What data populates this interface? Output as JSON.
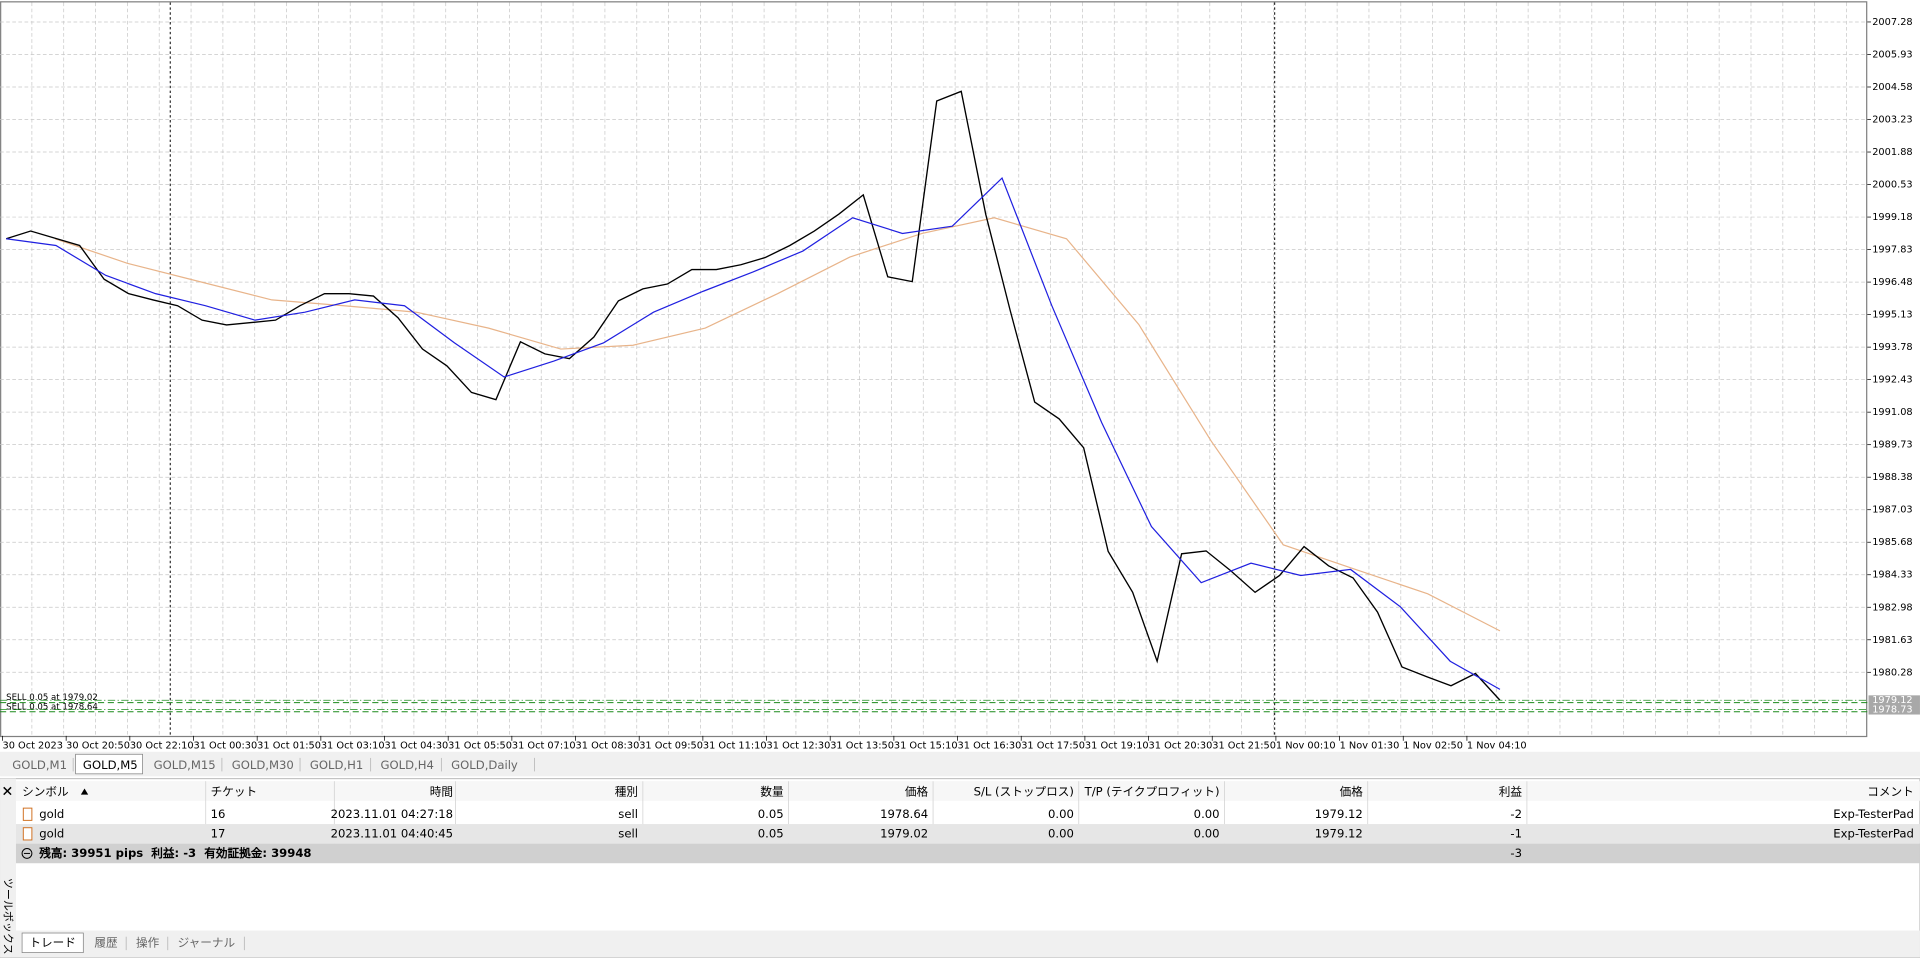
{
  "chart": {
    "ylim": [
      1977.64,
      2008.09
    ],
    "yticks": [
      2007.28,
      2005.93,
      2004.58,
      2003.23,
      2001.88,
      2000.53,
      1999.18,
      1997.83,
      1996.48,
      1995.13,
      1993.78,
      1992.43,
      1991.08,
      1989.73,
      1988.38,
      1987.03,
      1985.68,
      1984.33,
      1982.98,
      1981.63,
      1980.28
    ],
    "x_labels": [
      "30 Oct 2023",
      "30 Oct 20:50",
      "30 Oct 22:10",
      "31 Oct 00:30",
      "31 Oct 01:50",
      "31 Oct 03:10",
      "31 Oct 04:30",
      "31 Oct 05:50",
      "31 Oct 07:10",
      "31 Oct 08:30",
      "31 Oct 09:50",
      "31 Oct 11:10",
      "31 Oct 12:30",
      "31 Oct 13:50",
      "31 Oct 15:10",
      "31 Oct 16:30",
      "31 Oct 17:50",
      "31 Oct 19:10",
      "31 Oct 20:30",
      "31 Oct 21:50",
      "1 Nov 00:10",
      "1 Nov 01:30",
      "1 Nov 02:50",
      "1 Nov 04:10"
    ],
    "close": [
      1998.28,
      1998.6,
      1998.3,
      1998.0,
      1996.6,
      1996.0,
      1995.74,
      1995.5,
      1994.9,
      1994.7,
      1994.8,
      1994.9,
      1995.5,
      1996.0,
      1996.0,
      1995.9,
      1995.0,
      1993.7,
      1993.0,
      1991.9,
      1991.6,
      1994.0,
      1993.5,
      1993.3,
      1994.2,
      1995.7,
      1996.2,
      1996.4,
      1997.0,
      1997.0,
      1997.2,
      1997.5,
      1998.0,
      1998.6,
      1999.3,
      2000.1,
      1996.7,
      1996.5,
      2004.0,
      2004.4,
      1999.3,
      1995.3,
      1991.5,
      1990.8,
      1989.6,
      1985.3,
      1983.6,
      1980.74,
      1985.2,
      1985.32,
      1984.5,
      1983.6,
      1984.3,
      1985.5,
      1984.7,
      1984.2,
      1982.78,
      1980.5,
      1980.1,
      1979.72,
      1980.23,
      1979.12
    ],
    "close_color": "#000000",
    "ma_fast": [
      1998.28,
      1998.0,
      1996.76,
      1996.0,
      1995.5,
      1994.9,
      1995.23,
      1995.74,
      1995.5,
      1993.96,
      1992.54,
      1993.2,
      1993.96,
      1995.23,
      1996.1,
      1996.9,
      1997.77,
      1999.15,
      1998.5,
      1998.8,
      2000.8,
      1995.5,
      1990.65,
      1986.33,
      1984.0,
      1984.81,
      1984.3,
      1984.55,
      1983.0,
      1980.74,
      1979.57
    ],
    "ma_fast_color": "#2020e0",
    "ma_slow": [
      1998.28,
      1997.26,
      1996.5,
      1995.74,
      1995.5,
      1995.23,
      1994.57,
      1993.7,
      1993.86,
      1994.57,
      1996.0,
      1997.52,
      1998.5,
      1999.15,
      1998.28,
      1994.72,
      1989.89,
      1985.57,
      1984.55,
      1983.54,
      1982.0
    ],
    "ma_slow_color": "#e8b48a",
    "orders": [
      {
        "label": "SELL 0.05 at 1979.02",
        "price": 1979.02
      },
      {
        "label": "SELL 0.05 at 1978.64",
        "price": 1978.64
      }
    ],
    "price_markers": [
      1979.12,
      1978.73
    ]
  },
  "chart_tabs": [
    "GOLD,M1",
    "GOLD,M5",
    "GOLD,M15",
    "GOLD,M30",
    "GOLD,H1",
    "GOLD,H4",
    "GOLD,Daily"
  ],
  "active_chart_tab": 1,
  "table": {
    "headers": [
      "シンボル",
      "チケット",
      "時間",
      "種別",
      "数量",
      "価格",
      "S/L (ストップロス)",
      "T/P (テイクプロフィット)",
      "価格",
      "利益",
      "コメント"
    ],
    "rows": [
      [
        "gold",
        "16",
        "2023.11.01 04:27:18",
        "sell",
        "0.05",
        "1978.64",
        "0.00",
        "0.00",
        "1979.12",
        "-2",
        "Exp-TesterPad"
      ],
      [
        "gold",
        "17",
        "2023.11.01 04:40:45",
        "sell",
        "0.05",
        "1979.02",
        "0.00",
        "0.00",
        "1979.12",
        "-1",
        "Exp-TesterPad"
      ]
    ]
  },
  "summary": {
    "text": "残高: 39951 pips  利益: -3  有効証拠金: 39948",
    "total": "-3"
  },
  "toolbox_title": "ツールボックス",
  "toolbox_tabs": [
    "トレード",
    "履歴",
    "操作",
    "ジャーナル"
  ],
  "active_toolbox_tab": 0
}
